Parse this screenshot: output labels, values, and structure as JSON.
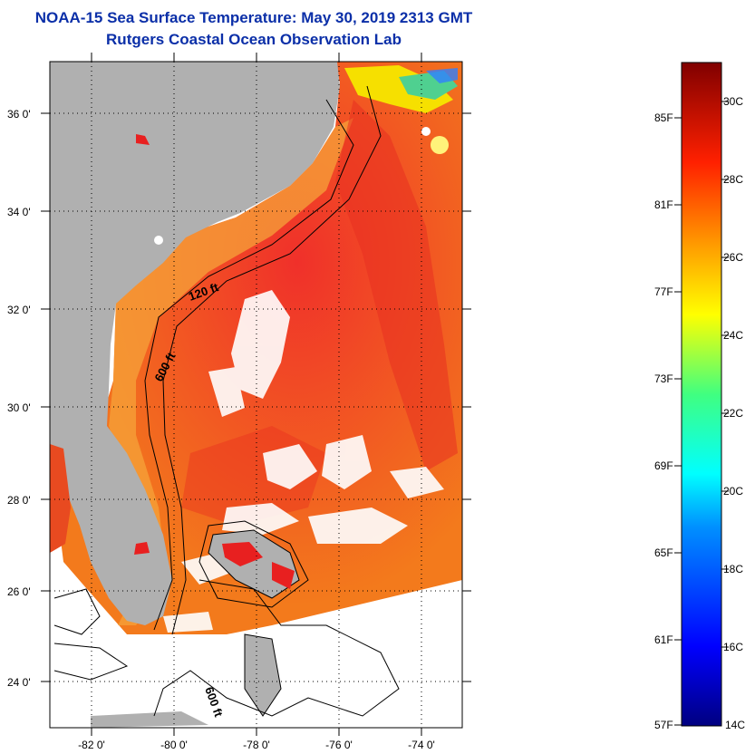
{
  "header": {
    "title": "NOAA-15 Sea Surface Temperature:  May 30, 2019 2313 GMT",
    "subtitle": "Rutgers Coastal Ocean Observation Lab"
  },
  "map": {
    "region": "US Southeast coast, Florida and Bahamas",
    "lon_range": [
      -83,
      -73
    ],
    "lat_range": [
      23,
      37
    ],
    "lat_ticks": [
      "36 0'",
      "34 0'",
      "32 0'",
      "30 0'",
      "28 0'",
      "26 0'",
      "24 0'"
    ],
    "lon_ticks": [
      "-82 0'",
      "-80 0'",
      "-78 0'",
      "-76 0'",
      "-74 0'"
    ],
    "contour_labels": [
      "120 ft",
      "600 ft",
      "600 ft"
    ],
    "colors": {
      "land": "#b0b0b0",
      "warm_water": "#f2701d",
      "hot_water": "#e8301c",
      "cloud": "#ffffff"
    }
  },
  "colorbar": {
    "fahrenheit_labels": [
      "85F",
      "81F",
      "77F",
      "73F",
      "69F",
      "65F",
      "61F",
      "57F"
    ],
    "celsius_labels": [
      "30C",
      "28C",
      "26C",
      "24C",
      "22C",
      "20C",
      "18C",
      "16C",
      "14C"
    ],
    "range_c": [
      14,
      31
    ]
  }
}
